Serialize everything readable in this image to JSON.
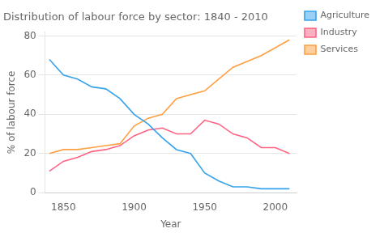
{
  "chart_data": {
    "type": "line",
    "title": "Distribution of labour force by sector: 1840 - 2010",
    "xlabel": "Year",
    "ylabel": "% of labour force",
    "x": [
      1840,
      1850,
      1860,
      1870,
      1880,
      1890,
      1900,
      1910,
      1920,
      1930,
      1940,
      1950,
      1960,
      1970,
      1980,
      1990,
      2000,
      2010
    ],
    "series": [
      {
        "name": "Agriculture",
        "values": [
          68,
          60,
          58,
          54,
          53,
          48,
          40,
          35,
          28,
          22,
          20,
          10,
          6,
          3,
          3,
          2,
          2,
          2
        ]
      },
      {
        "name": "Industry",
        "values": [
          11,
          16,
          18,
          21,
          22,
          24,
          29,
          32,
          33,
          30,
          30,
          37,
          35,
          30,
          28,
          23,
          23,
          20
        ]
      },
      {
        "name": "Services",
        "values": [
          20,
          22,
          22,
          23,
          24,
          25,
          34,
          38,
          40,
          48,
          50,
          52,
          58,
          64,
          67,
          70,
          74,
          78
        ]
      }
    ],
    "xlim": [
      1837,
      2015
    ],
    "ylim": [
      0,
      82
    ],
    "xticks": [
      1850,
      1900,
      1950,
      2000
    ],
    "yticks": [
      0,
      20,
      40,
      60,
      80
    ],
    "grid": "y",
    "legend": "right"
  }
}
